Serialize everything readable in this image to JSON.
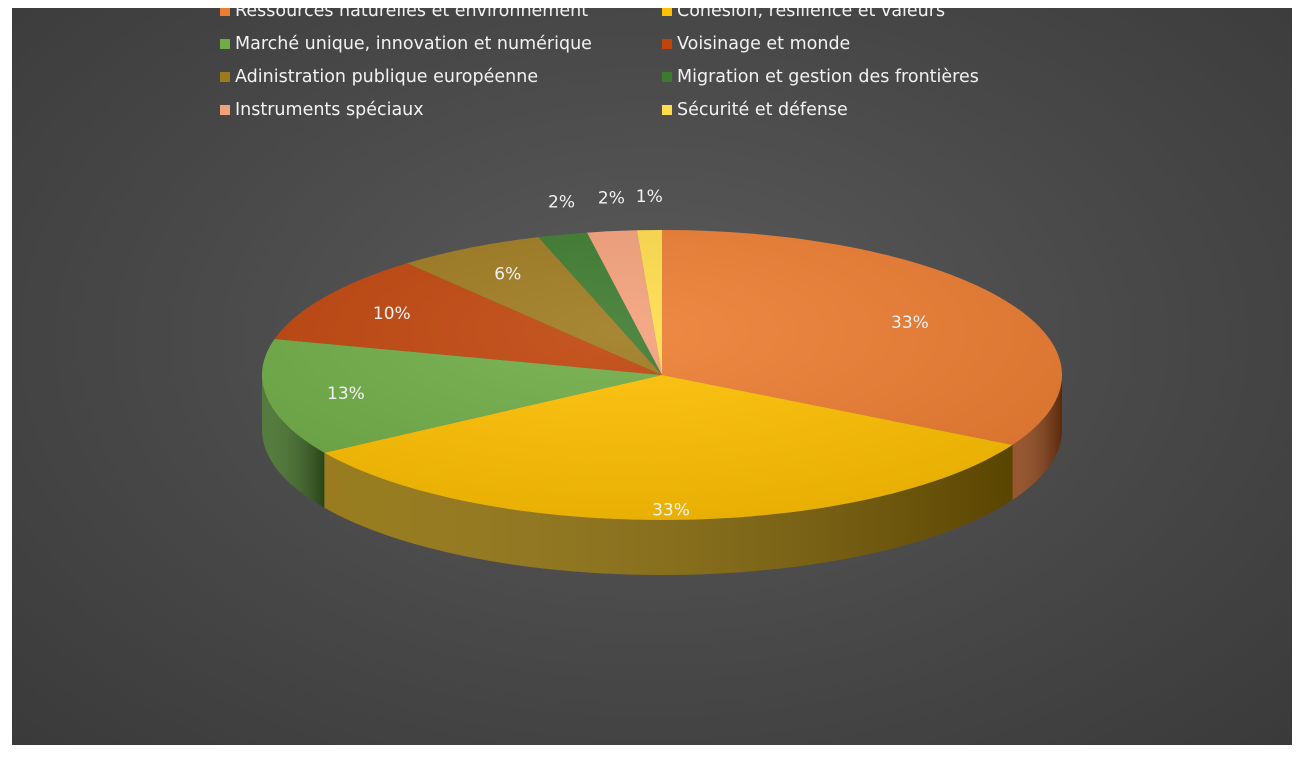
{
  "chart_data": {
    "type": "pie",
    "style": "3d",
    "title": "",
    "legend_position": "top",
    "slices": [
      {
        "name": "Ressources naturelles et environnement",
        "value": 33,
        "label": "33%",
        "color": "#ed7d31",
        "side_color": "#8a3f12",
        "label_color": "#f2f2f2"
      },
      {
        "name": "Cohésion, résilience et valeurs",
        "value": 33,
        "label": "33%",
        "color": "#ffc000",
        "side_color": "#8a6a00",
        "label_color": "#f2f2f2"
      },
      {
        "name": "Marché unique, innovation et numérique",
        "value": 13,
        "label": "13%",
        "color": "#70ad47",
        "side_color": "#3d6a22",
        "label_color": "#f2f2f2"
      },
      {
        "name": "Voisinage et monde",
        "value": 10,
        "label": "10%",
        "color": "#c0450c",
        "side_color": "#6a2606",
        "label_color": "#f2f2f2"
      },
      {
        "name": "Adinistration publique européenne",
        "value": 6,
        "label": "6%",
        "color": "#9e7a1e",
        "side_color": "#5a4410",
        "label_color": "#f2f2f2"
      },
      {
        "name": "Migration et gestion des frontières",
        "value": 2,
        "label": "2%",
        "color": "#3c7a2e",
        "side_color": "#234a1a",
        "label_color": "#f2f2f2"
      },
      {
        "name": "Instruments spéciaux",
        "value": 2,
        "label": "2%",
        "color": "#f4a07a",
        "side_color": "#a05a3a",
        "label_color": "#f2f2f2"
      },
      {
        "name": "Sécurité et défense",
        "value": 1,
        "label": "1%",
        "color": "#ffdc4a",
        "side_color": "#9a8420",
        "label_color": "#f2f2f2"
      }
    ]
  }
}
